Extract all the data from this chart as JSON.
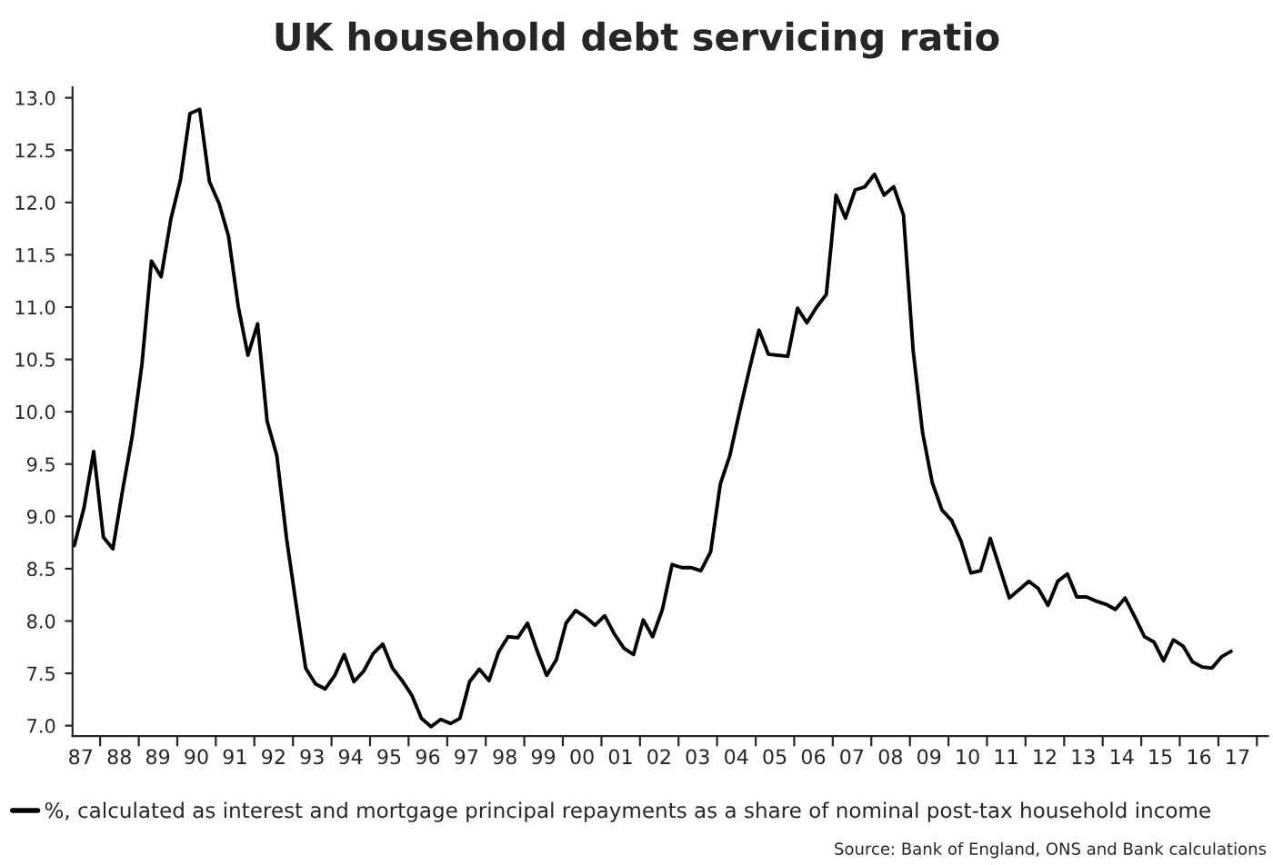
{
  "chart_data": {
    "type": "line",
    "title": "UK household debt servicing ratio",
    "x": [
      "1987-05",
      "1987-08",
      "1987-11",
      "1988-02",
      "1988-05",
      "1988-08",
      "1988-11",
      "1989-02",
      "1989-05",
      "1989-08",
      "1989-11",
      "1990-02",
      "1990-05",
      "1990-08",
      "1990-11",
      "1991-02",
      "1991-05",
      "1991-08",
      "1991-11",
      "1992-02",
      "1992-05",
      "1992-08",
      "1992-11",
      "1993-02",
      "1993-05",
      "1993-08",
      "1993-11",
      "1994-02",
      "1994-05",
      "1994-08",
      "1994-11",
      "1995-02",
      "1995-05",
      "1995-08",
      "1995-11",
      "1996-02",
      "1996-05",
      "1996-08",
      "1996-11",
      "1997-02",
      "1997-05",
      "1997-08",
      "1997-11",
      "1998-02",
      "1998-05",
      "1998-08",
      "1998-11",
      "1999-02",
      "1999-05",
      "1999-08",
      "1999-11",
      "2000-02",
      "2000-05",
      "2000-08",
      "2000-11",
      "2001-02",
      "2001-05",
      "2001-08",
      "2001-11",
      "2002-02",
      "2002-05",
      "2002-08",
      "2002-11",
      "2003-02",
      "2003-05",
      "2003-08",
      "2003-11",
      "2004-02",
      "2004-05",
      "2004-08",
      "2004-11",
      "2005-02",
      "2005-05",
      "2005-08",
      "2005-11",
      "2006-02",
      "2006-05",
      "2006-08",
      "2006-11",
      "2007-02",
      "2007-05",
      "2007-08",
      "2007-11",
      "2008-02",
      "2008-05",
      "2008-08",
      "2008-11",
      "2009-02",
      "2009-05",
      "2009-08",
      "2009-11",
      "2010-02",
      "2010-05",
      "2010-08",
      "2010-11",
      "2011-02",
      "2011-05",
      "2011-08",
      "2011-11",
      "2012-02",
      "2012-05",
      "2012-08",
      "2012-11",
      "2013-02",
      "2013-05",
      "2013-08",
      "2013-11",
      "2014-02",
      "2014-05",
      "2014-08",
      "2014-11",
      "2015-02",
      "2015-05",
      "2015-08",
      "2015-11",
      "2016-02",
      "2016-05",
      "2016-08",
      "2016-11",
      "2017-02",
      "2017-05"
    ],
    "series": [
      {
        "name": "%, calculated as interest and mortgage principal repayments as a share of nominal post-tax household income",
        "color": "#000000",
        "values": [
          8.72,
          9.08,
          9.62,
          8.8,
          8.69,
          9.25,
          9.77,
          10.46,
          11.44,
          11.29,
          11.84,
          12.22,
          12.85,
          12.89,
          12.2,
          11.99,
          11.68,
          11.01,
          10.54,
          10.84,
          9.91,
          9.58,
          8.79,
          8.15,
          7.55,
          7.4,
          7.35,
          7.48,
          7.68,
          7.42,
          7.52,
          7.69,
          7.78,
          7.55,
          7.43,
          7.29,
          7.07,
          6.99,
          7.06,
          7.02,
          7.07,
          7.42,
          7.54,
          7.43,
          7.7,
          7.85,
          7.84,
          7.98,
          7.72,
          7.48,
          7.63,
          7.98,
          8.1,
          8.04,
          7.96,
          8.05,
          7.88,
          7.74,
          7.68,
          8.01,
          7.85,
          8.11,
          8.54,
          8.51,
          8.51,
          8.48,
          8.66,
          9.31,
          9.58,
          10.0,
          10.4,
          10.78,
          10.55,
          10.54,
          10.53,
          10.99,
          10.85,
          11.0,
          11.12,
          12.07,
          11.85,
          12.12,
          12.15,
          12.27,
          12.07,
          12.15,
          11.88,
          10.58,
          9.8,
          9.32,
          9.06,
          8.96,
          8.76,
          8.46,
          8.48,
          8.79,
          8.51,
          8.22,
          8.3,
          8.38,
          8.31,
          8.15,
          8.38,
          8.45,
          8.23,
          8.23,
          8.19,
          8.16,
          8.11,
          8.22,
          8.04,
          7.85,
          7.8,
          7.62,
          7.82,
          7.76,
          7.61,
          7.56,
          7.55,
          7.66,
          7.71
        ]
      }
    ],
    "xlim": [
      "1987-04-15",
      "2018-04-15"
    ],
    "xticks": [
      {
        "value": "1988-01-01",
        "label": null
      },
      {
        "value": "1989-01-01",
        "label": null
      },
      {
        "value": "1990-01-01",
        "label": null
      },
      {
        "value": "1991-01-01",
        "label": null
      },
      {
        "value": "1992-01-01",
        "label": null
      },
      {
        "value": "1993-01-01",
        "label": null
      },
      {
        "value": "1994-01-01",
        "label": null
      },
      {
        "value": "1995-01-01",
        "label": null
      },
      {
        "value": "1996-01-01",
        "label": null
      },
      {
        "value": "1997-01-01",
        "label": null
      },
      {
        "value": "1998-01-01",
        "label": null
      },
      {
        "value": "1999-01-01",
        "label": null
      },
      {
        "value": "2000-01-01",
        "label": null
      },
      {
        "value": "2001-01-01",
        "label": null
      },
      {
        "value": "2002-01-01",
        "label": null
      },
      {
        "value": "2003-01-01",
        "label": null
      },
      {
        "value": "2004-01-01",
        "label": null
      },
      {
        "value": "2005-01-01",
        "label": null
      },
      {
        "value": "2006-01-01",
        "label": null
      },
      {
        "value": "2007-01-01",
        "label": null
      },
      {
        "value": "2008-01-01",
        "label": null
      },
      {
        "value": "2009-01-01",
        "label": null
      },
      {
        "value": "2010-01-01",
        "label": null
      },
      {
        "value": "2011-01-01",
        "label": null
      },
      {
        "value": "2012-01-01",
        "label": null
      },
      {
        "value": "2013-01-01",
        "label": null
      },
      {
        "value": "2014-01-01",
        "label": null
      },
      {
        "value": "2015-01-01",
        "label": null
      },
      {
        "value": "2016-01-01",
        "label": null
      },
      {
        "value": "2017-01-01",
        "label": null
      },
      {
        "value": "2018-01-01",
        "label": null
      },
      {
        "value": "1987-07-01",
        "label": "87"
      },
      {
        "value": "1988-07-01",
        "label": "88"
      },
      {
        "value": "1989-07-01",
        "label": "89"
      },
      {
        "value": "1990-07-01",
        "label": "90"
      },
      {
        "value": "1991-07-01",
        "label": "91"
      },
      {
        "value": "1992-07-01",
        "label": "92"
      },
      {
        "value": "1993-07-01",
        "label": "93"
      },
      {
        "value": "1994-07-01",
        "label": "94"
      },
      {
        "value": "1995-07-01",
        "label": "95"
      },
      {
        "value": "1996-07-01",
        "label": "96"
      },
      {
        "value": "1997-07-01",
        "label": "97"
      },
      {
        "value": "1998-07-01",
        "label": "98"
      },
      {
        "value": "1999-07-01",
        "label": "99"
      },
      {
        "value": "2000-07-01",
        "label": "00"
      },
      {
        "value": "2001-07-01",
        "label": "01"
      },
      {
        "value": "2002-07-01",
        "label": "02"
      },
      {
        "value": "2003-07-01",
        "label": "03"
      },
      {
        "value": "2004-07-01",
        "label": "04"
      },
      {
        "value": "2005-07-01",
        "label": "05"
      },
      {
        "value": "2006-07-01",
        "label": "06"
      },
      {
        "value": "2007-07-01",
        "label": "07"
      },
      {
        "value": "2008-07-01",
        "label": "08"
      },
      {
        "value": "2009-07-01",
        "label": "09"
      },
      {
        "value": "2010-07-01",
        "label": "10"
      },
      {
        "value": "2011-07-01",
        "label": "11"
      },
      {
        "value": "2012-07-01",
        "label": "12"
      },
      {
        "value": "2013-07-01",
        "label": "13"
      },
      {
        "value": "2014-07-01",
        "label": "14"
      },
      {
        "value": "2015-07-01",
        "label": "15"
      },
      {
        "value": "2016-07-01",
        "label": "16"
      },
      {
        "value": "2017-07-01",
        "label": "17"
      }
    ],
    "ylim": [
      6.9,
      13.1
    ],
    "yticks": [
      {
        "value": 7,
        "label": "7.0"
      },
      {
        "value": 7.5,
        "label": "7.5"
      },
      {
        "value": 8,
        "label": "8.0"
      },
      {
        "value": 8.5,
        "label": "8.5"
      },
      {
        "value": 9,
        "label": "9.0"
      },
      {
        "value": 9.5,
        "label": "9.5"
      },
      {
        "value": 10,
        "label": "10.0"
      },
      {
        "value": 10.5,
        "label": "10.5"
      },
      {
        "value": 11,
        "label": "11.0"
      },
      {
        "value": 11.5,
        "label": "11.5"
      },
      {
        "value": 12,
        "label": "12.0"
      },
      {
        "value": 12.5,
        "label": "12.5"
      },
      {
        "value": 13,
        "label": "13.0"
      }
    ],
    "grid": false,
    "legend": "bottom",
    "marker": "none",
    "line_style": "solid",
    "annotations": [
      "Source: Bank of England, ONS and Bank calculations"
    ]
  }
}
